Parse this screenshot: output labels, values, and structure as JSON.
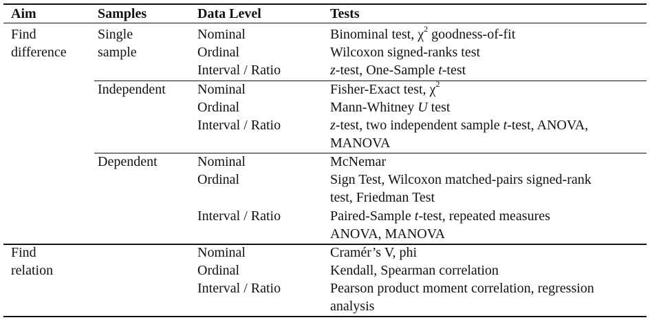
{
  "headers": {
    "aim": "Aim",
    "samples": "Samples",
    "data_level": "Data Level",
    "tests": "Tests"
  },
  "groups": [
    {
      "aim": [
        "Find",
        "difference"
      ],
      "subgroups": [
        {
          "samples": [
            "Single",
            "sample"
          ],
          "rows": [
            {
              "level": "Nominal",
              "tests": [
                "Binominal test, χ",
                "2",
                " goodness-of-fit"
              ]
            },
            {
              "level": "Ordinal",
              "tests": [
                "Wilcoxon signed-ranks test"
              ]
            },
            {
              "level": "Interval / Ratio",
              "tests": [
                "z",
                "-test, One-Sample ",
                "t",
                "-test"
              ]
            }
          ]
        },
        {
          "samples": [
            "Independent"
          ],
          "rows": [
            {
              "level": "Nominal",
              "tests": [
                "Fisher-Exact test, χ",
                "2"
              ]
            },
            {
              "level": "Ordinal",
              "tests": [
                "Mann-Whitney ",
                "U",
                " test"
              ]
            },
            {
              "level": "Interval / Ratio",
              "tests": [
                "z",
                "-test, two independent sample ",
                "t",
                "-test, ANOVA,",
                "MANOVA"
              ]
            }
          ]
        },
        {
          "samples": [
            "Dependent"
          ],
          "rows": [
            {
              "level": "Nominal",
              "tests": [
                "McNemar"
              ]
            },
            {
              "level": "Ordinal",
              "tests": [
                "Sign Test, Wilcoxon matched-pairs signed-rank",
                "test, Friedman Test"
              ]
            },
            {
              "level": "Interval / Ratio",
              "tests": [
                "Paired-Sample ",
                "t",
                "-test, repeated measures",
                "ANOVA, MANOVA"
              ]
            }
          ]
        }
      ]
    },
    {
      "aim": [
        "Find",
        "relation"
      ],
      "subgroups": [
        {
          "samples": [],
          "rows": [
            {
              "level": "Nominal",
              "tests": [
                "Cramér’s V, phi"
              ]
            },
            {
              "level": "Ordinal",
              "tests": [
                "Kendall, Spearman correlation"
              ]
            },
            {
              "level": "Interval / Ratio",
              "tests": [
                "Pearson product moment correlation, regression",
                "analysis"
              ]
            }
          ]
        }
      ]
    }
  ]
}
